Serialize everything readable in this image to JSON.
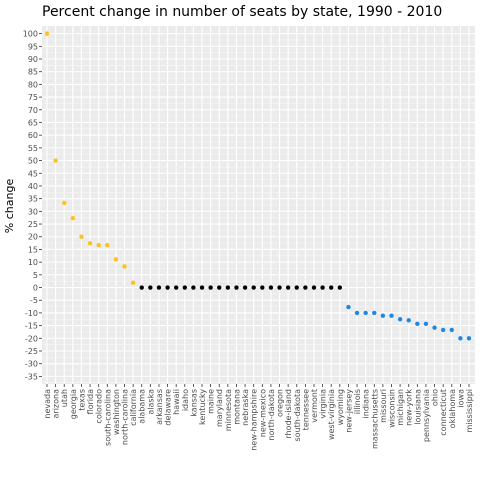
{
  "chart_data": {
    "type": "scatter",
    "title": "Percent change in number of seats by state, 1990 - 2010",
    "xlabel": "",
    "ylabel": "% change",
    "ylim": [
      -38,
      103
    ],
    "yticks": [
      100,
      95,
      90,
      85,
      80,
      75,
      70,
      65,
      60,
      55,
      50,
      45,
      40,
      35,
      30,
      25,
      20,
      15,
      10,
      5,
      0,
      -5,
      -10,
      -15,
      -20,
      -25,
      -30,
      -35
    ],
    "grid": true,
    "legend": "none",
    "colors": {
      "increase": "#FFC21A",
      "nochange": "#000000",
      "decrease": "#1E88E5",
      "panel": "#EBEBEB",
      "grid": "#FFFFFF"
    },
    "categories": [
      "nevada",
      "arizona",
      "utah",
      "georgia",
      "texas",
      "florida",
      "colorado",
      "south-carolina",
      "washington",
      "north-carolina",
      "california",
      "alabama",
      "alaska",
      "arkansas",
      "delaware",
      "hawaii",
      "idaho",
      "kansas",
      "kentucky",
      "maine",
      "maryland",
      "minnesota",
      "montana",
      "nebraska",
      "new-hampshire",
      "new-mexico",
      "north-dakota",
      "oregon",
      "rhode-island",
      "south-dakota",
      "tennessee",
      "vermont",
      "virginia",
      "west-virginia",
      "wyoming",
      "new-jersey",
      "illinois",
      "indiana",
      "massachusetts",
      "missouri",
      "wisconsin",
      "michigan",
      "new-york",
      "louisiana",
      "pennsylvania",
      "ohio",
      "connecticut",
      "oklahoma",
      "iowa",
      "mississippi"
    ],
    "values": [
      100,
      50,
      33.3,
      27.3,
      20,
      17.4,
      16.7,
      16.7,
      11.1,
      8.3,
      1.9,
      0,
      0,
      0,
      0,
      0,
      0,
      0,
      0,
      0,
      0,
      0,
      0,
      0,
      0,
      0,
      0,
      0,
      0,
      0,
      0,
      0,
      0,
      0,
      0,
      -7.7,
      -10,
      -10,
      -10,
      -11.1,
      -11.1,
      -12.5,
      -12.9,
      -14.3,
      -14.3,
      -15.8,
      -16.7,
      -16.7,
      -20,
      -20
    ]
  }
}
